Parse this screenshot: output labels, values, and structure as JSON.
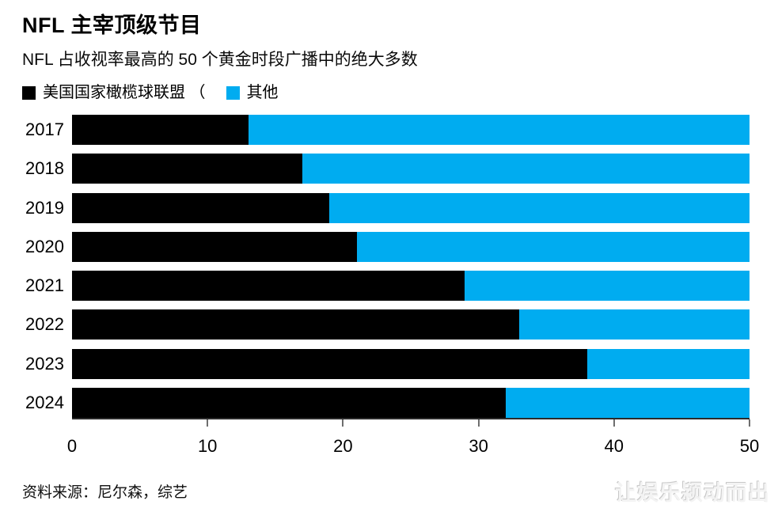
{
  "header": {
    "title": "NFL 主宰顶级节目",
    "subtitle": "NFL 占收视率最高的 50 个黄金时段广播中的绝大多数"
  },
  "footer": {
    "source": "资料来源：尼尔森，综艺",
    "watermark": "让娱乐颍动而出"
  },
  "chart_data": {
    "type": "bar",
    "orientation": "horizontal",
    "stacked": true,
    "title": "NFL 主宰顶级节目",
    "subtitle": "NFL 占收视率最高的 50 个黄金时段广播中的绝大多数",
    "categories": [
      "2017",
      "2018",
      "2019",
      "2020",
      "2021",
      "2022",
      "2023",
      "2024"
    ],
    "series": [
      {
        "name": "美国国家橄榄球联盟",
        "color": "#000000",
        "values": [
          13,
          17,
          19,
          21,
          29,
          33,
          38,
          32
        ]
      },
      {
        "name": "其他",
        "color": "#00acf0",
        "values": [
          37,
          33,
          31,
          29,
          21,
          17,
          12,
          18
        ]
      }
    ],
    "legend": [
      {
        "label": "美国国家橄榄球联盟 （",
        "color": "#000000"
      },
      {
        "label": "其他",
        "color": "#00acf0"
      }
    ],
    "xlabel": "",
    "ylabel": "",
    "xlim": [
      0,
      50
    ],
    "xticks": [
      0,
      10,
      20,
      30,
      40,
      50
    ],
    "grid": false,
    "legend_position": "top-left"
  }
}
